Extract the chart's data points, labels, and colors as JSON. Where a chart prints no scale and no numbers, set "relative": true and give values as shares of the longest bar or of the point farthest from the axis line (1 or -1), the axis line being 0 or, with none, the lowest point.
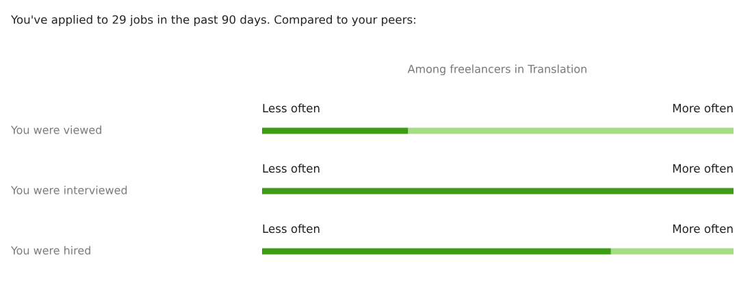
{
  "chart_data": {
    "type": "bar",
    "orientation": "horizontal",
    "stacked": true,
    "relative": true,
    "title": "You've applied to 29 jobs in the past 90 days. Compared to your peers:",
    "subtitle": "Among freelancers in Translation",
    "categories": [
      "You were viewed",
      "You were interviewed",
      "You were hired"
    ],
    "series": [
      {
        "color": "#3d9c13",
        "values": [
          0.31,
          1.0,
          0.74
        ]
      },
      {
        "color": "#a7dc87",
        "values": [
          0.69,
          0.0,
          0.26
        ]
      }
    ],
    "annotations": [
      "Less often",
      "More often",
      "Less often",
      "More often",
      "Less often",
      "More often"
    ]
  }
}
